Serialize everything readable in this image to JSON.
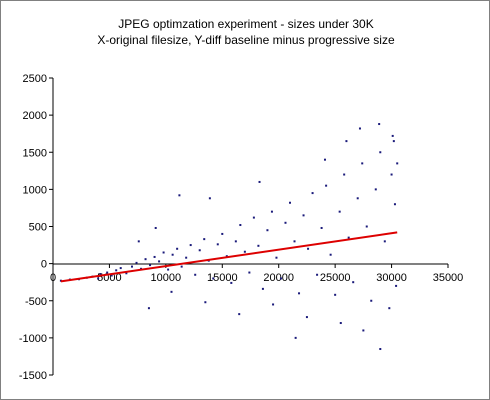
{
  "chart_data": {
    "type": "scatter",
    "title": "JPEG optimzation experiment - sizes under 30K",
    "subtitle": "X-original filesize, Y-diff baseline minus progressive size",
    "xlabel": "",
    "ylabel": "",
    "xlim": [
      0,
      35000
    ],
    "ylim": [
      -1500,
      2500
    ],
    "x_ticks": [
      0,
      5000,
      10000,
      15000,
      20000,
      25000,
      30000,
      35000
    ],
    "y_ticks": [
      -1500,
      -1000,
      -500,
      0,
      500,
      1000,
      1500,
      2000,
      2500
    ],
    "x_tick_labels": [
      "0",
      "5000",
      "10000",
      "15000",
      "20000",
      "25000",
      "30000",
      "35000"
    ],
    "y_tick_labels": [
      "-1500",
      "-1000",
      "-500",
      "0",
      "500",
      "1000",
      "1500",
      "2000",
      "2500"
    ],
    "grid": false,
    "legend": "none",
    "series": [
      {
        "kind": "scatter",
        "color": "#1a1a7a",
        "marker": "small-square",
        "points": [
          [
            700,
            -230
          ],
          [
            1500,
            -215
          ],
          [
            2300,
            -210
          ],
          [
            3000,
            -190
          ],
          [
            3500,
            -175
          ],
          [
            4000,
            -200
          ],
          [
            4200,
            -140
          ],
          [
            4800,
            -120
          ],
          [
            5200,
            -160
          ],
          [
            5600,
            -90
          ],
          [
            6000,
            -60
          ],
          [
            6500,
            -130
          ],
          [
            7000,
            -40
          ],
          [
            7400,
            10
          ],
          [
            7800,
            -70
          ],
          [
            8200,
            60
          ],
          [
            8600,
            -20
          ],
          [
            9000,
            90
          ],
          [
            9400,
            30
          ],
          [
            9800,
            150
          ],
          [
            10200,
            -80
          ],
          [
            10600,
            120
          ],
          [
            11000,
            200
          ],
          [
            11400,
            -40
          ],
          [
            11800,
            80
          ],
          [
            12200,
            250
          ],
          [
            12600,
            -150
          ],
          [
            13000,
            180
          ],
          [
            13400,
            330
          ],
          [
            13800,
            40
          ],
          [
            14200,
            -200
          ],
          [
            14600,
            260
          ],
          [
            15000,
            400
          ],
          [
            15400,
            100
          ],
          [
            15800,
            -260
          ],
          [
            16200,
            300
          ],
          [
            16600,
            520
          ],
          [
            17000,
            160
          ],
          [
            17400,
            -120
          ],
          [
            17800,
            620
          ],
          [
            18200,
            240
          ],
          [
            18600,
            -340
          ],
          [
            19000,
            450
          ],
          [
            19400,
            700
          ],
          [
            19800,
            80
          ],
          [
            20200,
            -200
          ],
          [
            20600,
            550
          ],
          [
            21000,
            820
          ],
          [
            21400,
            300
          ],
          [
            21800,
            -400
          ],
          [
            22200,
            650
          ],
          [
            22600,
            200
          ],
          [
            23000,
            950
          ],
          [
            23400,
            -150
          ],
          [
            23800,
            480
          ],
          [
            24200,
            1050
          ],
          [
            24600,
            120
          ],
          [
            25000,
            -420
          ],
          [
            25400,
            700
          ],
          [
            25800,
            1200
          ],
          [
            26200,
            350
          ],
          [
            26600,
            -250
          ],
          [
            27000,
            880
          ],
          [
            27400,
            1350
          ],
          [
            27800,
            500
          ],
          [
            28200,
            -500
          ],
          [
            28600,
            1000
          ],
          [
            29000,
            1500
          ],
          [
            29400,
            300
          ],
          [
            29800,
            -600
          ],
          [
            30000,
            1200
          ],
          [
            30200,
            1650
          ],
          [
            30300,
            800
          ],
          [
            30400,
            -300
          ],
          [
            30500,
            1350
          ],
          [
            8500,
            -600
          ],
          [
            10500,
            -380
          ],
          [
            13500,
            -520
          ],
          [
            16500,
            -680
          ],
          [
            19500,
            -550
          ],
          [
            22500,
            -720
          ],
          [
            25500,
            -800
          ],
          [
            27500,
            -900
          ],
          [
            29000,
            -1150
          ],
          [
            21500,
            -1000
          ],
          [
            27200,
            1820
          ],
          [
            28900,
            1880
          ],
          [
            30100,
            1720
          ],
          [
            26000,
            1650
          ],
          [
            24100,
            1400
          ],
          [
            18300,
            1100
          ],
          [
            13900,
            880
          ],
          [
            11200,
            920
          ],
          [
            9100,
            480
          ],
          [
            7600,
            300
          ]
        ]
      },
      {
        "kind": "trend-line",
        "color": "#dd0000",
        "points": [
          [
            700,
            -240
          ],
          [
            30500,
            420
          ]
        ]
      }
    ]
  }
}
